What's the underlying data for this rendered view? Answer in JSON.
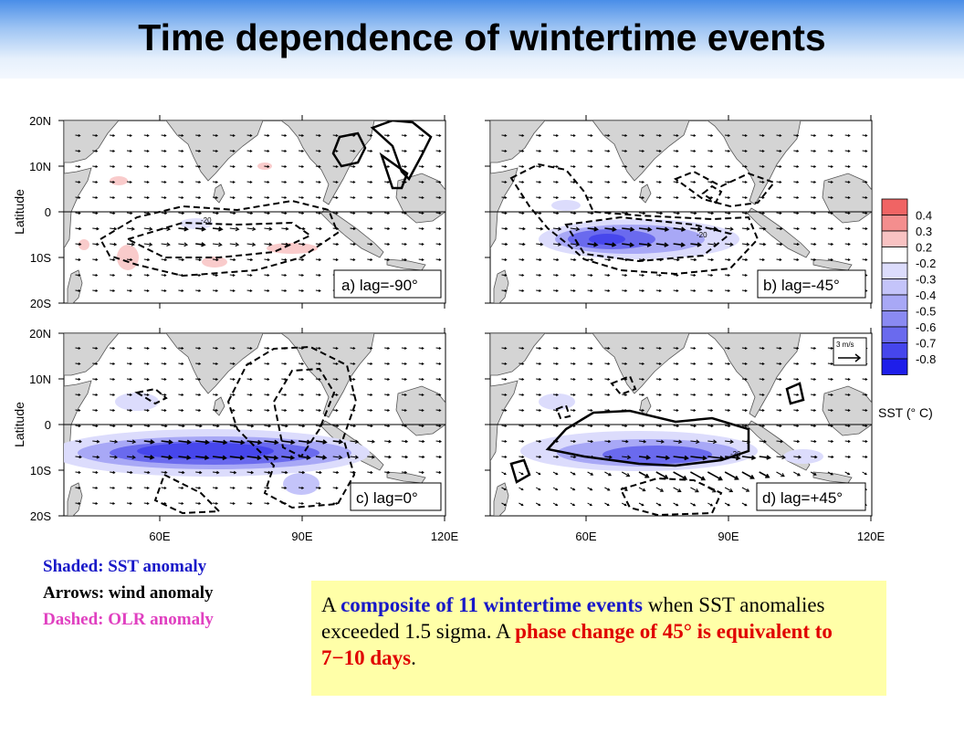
{
  "slide": {
    "title": "Time dependence of wintertime events"
  },
  "figure": {
    "lat_ticks": [
      "20N",
      "10N",
      "0",
      "10S",
      "20S"
    ],
    "lon_ticks": [
      "60E",
      "90E",
      "120E"
    ],
    "ylabel": "Latitude",
    "panels": [
      {
        "id": "a",
        "label": "a) lag=-90°"
      },
      {
        "id": "b",
        "label": "b) lag=-45°"
      },
      {
        "id": "c",
        "label": "c) lag=0°"
      },
      {
        "id": "d",
        "label": "d) lag=+45°"
      }
    ],
    "ref_vector_label": "3 m/s",
    "contour_label": "-20",
    "colorbar": {
      "levels": [
        "0.4",
        "0.3",
        "0.2",
        "-0.2",
        "-0.3",
        "-0.4",
        "-0.5",
        "-0.6",
        "-0.7",
        "-0.8"
      ],
      "colors": [
        "#f06464",
        "#f48e8e",
        "#f8c2c2",
        "#ffffff",
        "#dcdcfc",
        "#c4c4fa",
        "#a8a8f6",
        "#8a8af2",
        "#6a6aee",
        "#4646ec",
        "#1e1eea"
      ],
      "title": "SST (° C)"
    }
  },
  "legend": {
    "shaded": "Shaded: SST anomaly",
    "arrows": "Arrows: wind anomaly",
    "dashed": "Dashed: OLR anomaly",
    "colors": {
      "shaded": "#1818c8",
      "arrows": "#000000",
      "dashed": "#e040c0"
    }
  },
  "note": {
    "part1": "A ",
    "part2": "composite of 11 wintertime events",
    "part3": " when SST anomalies exceeded 1.5 sigma.  A ",
    "part4": "phase change of 45° is equivalent to 7−10 days",
    "part5": "."
  }
}
